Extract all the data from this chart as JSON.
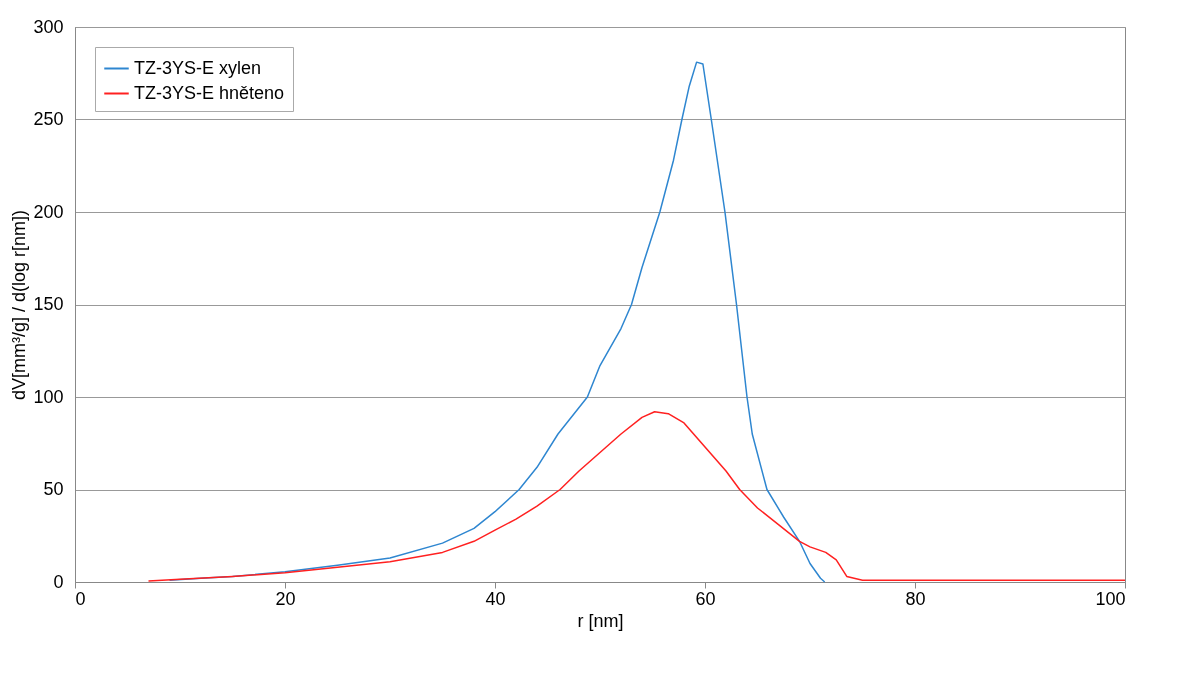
{
  "chart_data": {
    "type": "line",
    "xlabel": "r [nm]",
    "ylabel": "dV[mm³/g] / d(log r[nm])",
    "xlim": [
      0,
      100
    ],
    "xticks": [
      0,
      20,
      40,
      60,
      80,
      100
    ],
    "ylim": [
      0,
      300
    ],
    "yticks": [
      0,
      50,
      100,
      150,
      200,
      250,
      300
    ],
    "grid": "y",
    "legend": "top left",
    "marker": "none",
    "line_style": "solid",
    "series": [
      {
        "name": "TZ-3YS-E xylen",
        "color": "#2e86d0",
        "x": [
          9,
          12,
          15,
          20,
          25,
          30,
          35,
          38,
          40,
          42.3,
          44,
          46,
          48.8,
          50,
          52,
          53,
          54,
          55.7,
          57,
          57.8,
          58.5,
          59.2,
          59.8,
          60.6,
          61.9,
          63,
          63.6,
          64,
          64.5,
          65.9,
          67.5,
          69,
          70,
          71,
          71.4
        ],
        "values": [
          1,
          2,
          3,
          5.5,
          9,
          13,
          21,
          29,
          38,
          50,
          62,
          80,
          100,
          117,
          137,
          150,
          170,
          200,
          228,
          250,
          268,
          281,
          280,
          250,
          200,
          150,
          120,
          100,
          80,
          50,
          35,
          22,
          10,
          2,
          0
        ]
      },
      {
        "name": "TZ-3YS-E hněteno",
        "color": "#ff2020",
        "x": [
          7,
          10,
          15,
          20,
          25,
          30,
          35,
          38,
          40,
          42,
          44,
          46.2,
          48,
          50,
          52,
          54,
          55.2,
          56.5,
          58,
          60,
          62,
          63.3,
          65,
          67,
          69,
          70,
          71.5,
          72.5,
          73.5,
          75,
          80,
          90,
          100
        ],
        "values": [
          0.5,
          1.5,
          3,
          5,
          8,
          11,
          16,
          22,
          28,
          34,
          41,
          50,
          60,
          70,
          80,
          89,
          92,
          91,
          86,
          73,
          60,
          50,
          40,
          31,
          22,
          19,
          16,
          12,
          3,
          1,
          1,
          1,
          1
        ]
      }
    ]
  }
}
